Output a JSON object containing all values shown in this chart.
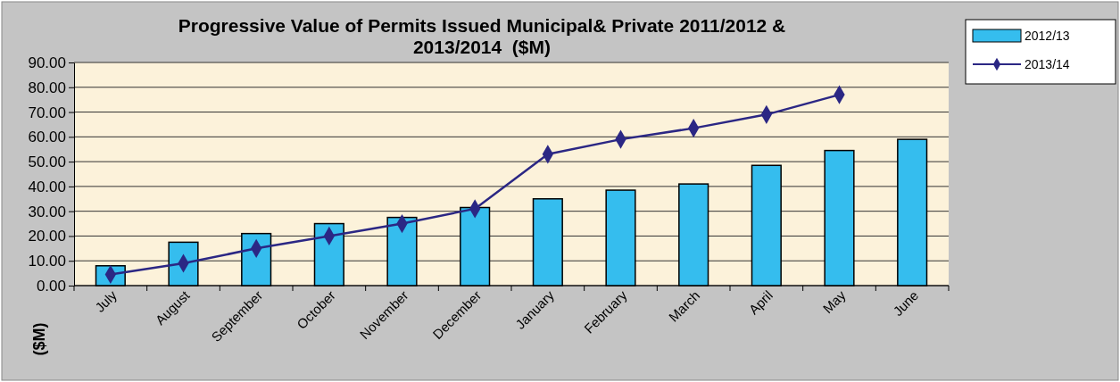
{
  "chart_data": {
    "type": "bar",
    "title": "Progressive Value of Permits Issued Municipal& Private 2011/2012 & 2013/2014  ($M)",
    "ylabel": "($M)",
    "categories": [
      "July",
      "August",
      "September",
      "October",
      "November",
      "December",
      "January",
      "February",
      "March",
      "April",
      "May",
      "June"
    ],
    "series": [
      {
        "name": "2012/13",
        "color": "#35bdee",
        "values": [
          8,
          17.5,
          21,
          25,
          27.5,
          31.5,
          35,
          38.5,
          41,
          48.5,
          54.5,
          59
        ]
      },
      {
        "name": "2013/14",
        "type": "line",
        "color": "#2b2784",
        "marker": "diamond",
        "values": [
          4.5,
          9,
          15,
          20,
          25,
          31,
          53,
          59,
          63.5,
          69,
          77,
          null
        ]
      }
    ],
    "ylim": [
      0,
      90
    ],
    "yticks": [
      {
        "value": 0,
        "label": "0.00"
      },
      {
        "value": 10,
        "label": "10.00"
      },
      {
        "value": 20,
        "label": "20.00"
      },
      {
        "value": 30,
        "label": "30.00"
      },
      {
        "value": 40,
        "label": "40.00"
      },
      {
        "value": 50,
        "label": "50.00"
      },
      {
        "value": 60,
        "label": "60.00"
      },
      {
        "value": 70,
        "label": "70.00"
      },
      {
        "value": 80,
        "label": "80.00"
      },
      {
        "value": 90,
        "label": "90.00"
      }
    ],
    "grid": "y",
    "legend": "top right"
  }
}
